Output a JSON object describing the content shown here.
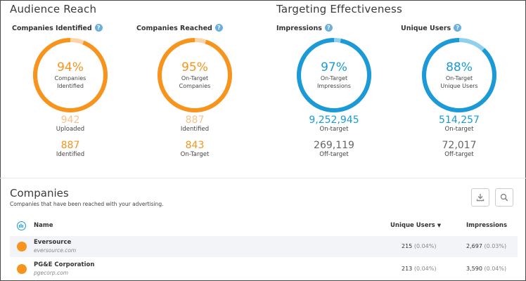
{
  "audience_reach": {
    "title": "Audience Reach",
    "companies_identified": {
      "label": "Companies Identified",
      "percent": "94%",
      "percent_value": 0.94,
      "donut_line1": "Companies",
      "donut_line2": "Identified",
      "stat1_value": "942",
      "stat1_label": "Uploaded",
      "stat2_value": "887",
      "stat2_label": "Identified"
    },
    "companies_reached": {
      "label": "Companies Reached",
      "percent": "95%",
      "percent_value": 0.95,
      "donut_line1": "On-Target",
      "donut_line2": "Companies",
      "stat1_value": "887",
      "stat1_label": "Identified",
      "stat2_value": "843",
      "stat2_label": "On-Target"
    }
  },
  "targeting_effectiveness": {
    "title": "Targeting Effectiveness",
    "impressions": {
      "label": "Impressions",
      "percent": "97%",
      "percent_value": 0.97,
      "donut_line1": "On-Target",
      "donut_line2": "Impressions",
      "stat1_value": "9,252,945",
      "stat1_label": "On-target",
      "stat2_value": "269,119",
      "stat2_label": "Off-target"
    },
    "unique_users": {
      "label": "Unique Users",
      "percent": "88%",
      "percent_value": 0.88,
      "donut_line1": "On-Target",
      "donut_line2": "Unique Users",
      "stat1_value": "514,257",
      "stat1_label": "On-target",
      "stat2_value": "72,017",
      "stat2_label": "Off-target"
    }
  },
  "colors": {
    "orange": "#f7941d",
    "orange_light": "#fbd3a6",
    "orange_stat_light": "#f8c18a",
    "blue": "#1b9ad6",
    "blue_light": "#8fd0ee",
    "gray": "#666666"
  },
  "companies": {
    "title": "Companies",
    "subtitle": "Companies that have been reached with your advertising.",
    "download_icon": "download-icon",
    "search_icon": "search-icon",
    "columns": {
      "name": "Name",
      "unique_users": "Unique Users",
      "impressions": "Impressions"
    },
    "rows": [
      {
        "name": "Eversource",
        "domain": "eversource.com",
        "unique_users": "215",
        "unique_users_pct": "(0.04%)",
        "impressions": "2,697",
        "impressions_pct": "(0.03%)"
      },
      {
        "name": "PG&E Corporation",
        "domain": "pgecorp.com",
        "unique_users": "213",
        "unique_users_pct": "(0.04%)",
        "impressions": "3,590",
        "impressions_pct": "(0.04%)"
      }
    ]
  }
}
